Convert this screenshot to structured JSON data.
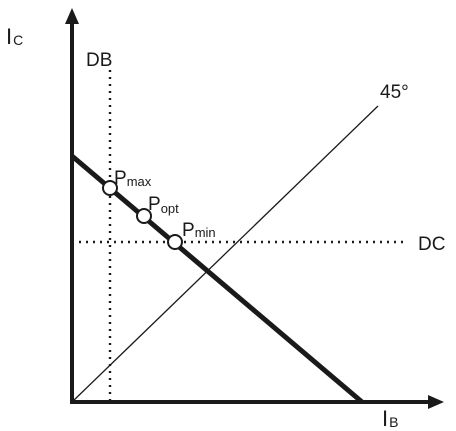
{
  "axes": {
    "y_label_main": "I",
    "y_label_sub": "C",
    "x_label_main": "I",
    "x_label_sub": "B"
  },
  "lines": {
    "db_label": "DB",
    "dc_label": "DC",
    "diag_label": "45°"
  },
  "points": {
    "pmax_main": "P",
    "pmax_sub": "max",
    "popt_main": "P",
    "popt_sub": "opt",
    "pmin_main": "P",
    "pmin_sub": "min"
  },
  "colors": {
    "ink": "#1a1a1a",
    "background": "#ffffff"
  }
}
